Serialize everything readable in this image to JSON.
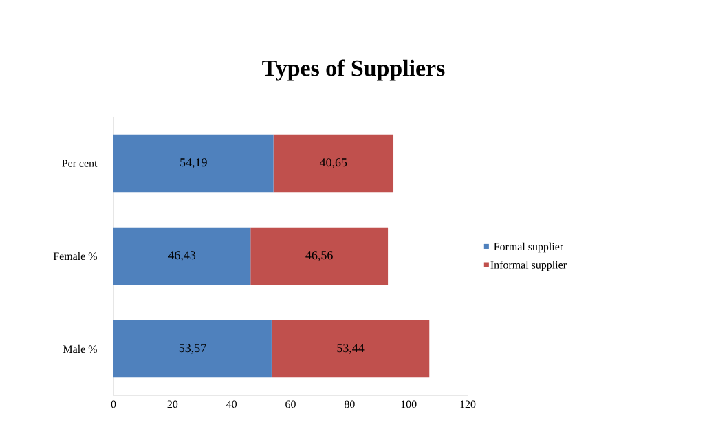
{
  "chart_data": {
    "type": "bar",
    "orientation": "horizontal",
    "stacked": true,
    "title": "Types of Suppliers",
    "categories": [
      "Per cent",
      "Female %",
      "Male %"
    ],
    "series": [
      {
        "name": "Formal supplier",
        "color": "#4f81bd",
        "values": [
          54.19,
          46.43,
          53.57
        ],
        "value_labels": [
          "54,19",
          "46,43",
          "53,57"
        ]
      },
      {
        "name": "Informal supplier",
        "color": "#c0504d",
        "values": [
          40.65,
          46.56,
          53.44
        ],
        "value_labels": [
          "40,65",
          "46,56",
          "53,44"
        ]
      }
    ],
    "xlim": [
      0,
      120
    ],
    "xticks": [
      0,
      20,
      40,
      60,
      80,
      100,
      120
    ],
    "grid": false,
    "legend": "right"
  }
}
